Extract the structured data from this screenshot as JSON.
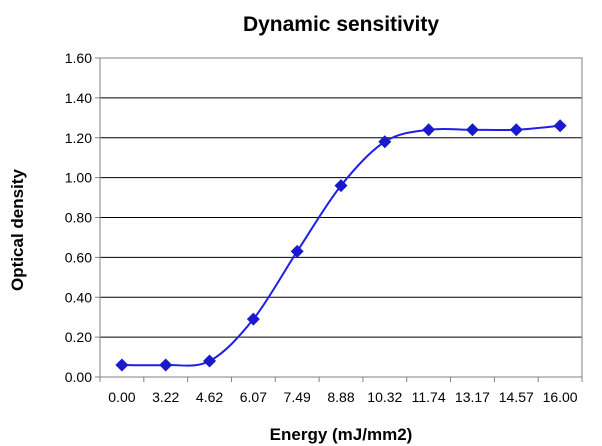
{
  "chart_data": {
    "type": "line",
    "title": "Dynamic sensitivity",
    "xlabel": "Energy (mJ/mm2)",
    "ylabel": "Optical density",
    "categories": [
      "0.00",
      "3.22",
      "4.62",
      "6.07",
      "7.49",
      "8.88",
      "10.32",
      "11.74",
      "13.17",
      "14.57",
      "16.00"
    ],
    "series": [
      {
        "values": [
          0.06,
          0.06,
          0.08,
          0.29,
          0.63,
          0.96,
          1.18,
          1.24,
          1.24,
          1.24,
          1.26
        ]
      }
    ],
    "ylim": [
      0,
      1.6
    ],
    "yticks": [
      "0.00",
      "0.20",
      "0.40",
      "0.60",
      "0.80",
      "1.00",
      "1.20",
      "1.40",
      "1.60"
    ],
    "grid": true,
    "marker": "diamond",
    "smooth": true,
    "line_color": "#1f1fe6",
    "marker_color": "#1a1acc"
  }
}
